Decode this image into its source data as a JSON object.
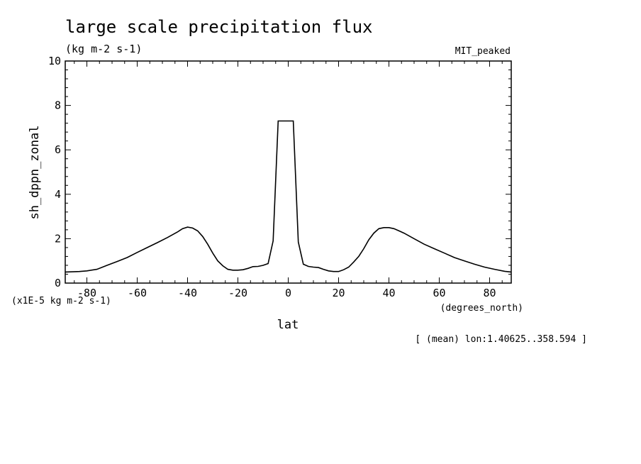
{
  "chart_data": {
    "type": "line",
    "title": "large scale precipitation flux",
    "units": "(kg m-2 s-1)",
    "dataset": "MIT_peaked",
    "ylabel": "sh_dppn_zonal",
    "xlabel": "lat",
    "x_units": "(degrees_north)",
    "scale_note": "(x1E-5 kg m-2 s-1)",
    "footnote": "[ (mean) lon:1.40625..358.594 ]",
    "xlim": [
      -88.6,
      88.6
    ],
    "ylim": [
      0,
      10
    ],
    "x_ticks": [
      -80,
      -60,
      -40,
      -20,
      0,
      20,
      40,
      60,
      80
    ],
    "x_tick_labels": [
      "-80",
      "-60",
      "-40",
      "-20",
      "0",
      "20",
      "40",
      "60",
      "80"
    ],
    "y_ticks": [
      0,
      2,
      4,
      6,
      8,
      10
    ],
    "y_tick_labels": [
      "0",
      "2",
      "4",
      "6",
      "8",
      "10"
    ],
    "series": [
      {
        "x": [
          -88.6,
          -83,
          -80,
          -76,
          -72,
          -68,
          -64,
          -60,
          -56,
          -52,
          -48,
          -44,
          -42,
          -40,
          -38,
          -36,
          -34,
          -32,
          -30,
          -28,
          -26,
          -24,
          -22,
          -20,
          -18,
          -16,
          -14,
          -12,
          -10,
          -8,
          -6,
          -4,
          -2,
          2,
          4,
          6,
          8,
          10,
          12,
          14,
          16,
          18,
          20,
          22,
          24,
          26,
          28,
          30,
          32,
          34,
          36,
          38,
          40,
          42,
          44,
          46,
          50,
          54,
          58,
          62,
          66,
          70,
          74,
          78,
          82,
          86,
          88.6
        ],
        "y": [
          0.5,
          0.52,
          0.55,
          0.62,
          0.8,
          0.97,
          1.15,
          1.38,
          1.6,
          1.82,
          2.05,
          2.3,
          2.45,
          2.52,
          2.48,
          2.35,
          2.1,
          1.75,
          1.35,
          1.0,
          0.78,
          0.62,
          0.58,
          0.58,
          0.6,
          0.66,
          0.74,
          0.75,
          0.8,
          0.88,
          1.9,
          7.3,
          7.3,
          7.3,
          1.85,
          0.85,
          0.75,
          0.72,
          0.7,
          0.62,
          0.55,
          0.52,
          0.52,
          0.6,
          0.72,
          0.95,
          1.2,
          1.55,
          1.95,
          2.25,
          2.45,
          2.5,
          2.5,
          2.45,
          2.35,
          2.25,
          2.0,
          1.75,
          1.55,
          1.35,
          1.15,
          1.0,
          0.85,
          0.72,
          0.62,
          0.53,
          0.5
        ]
      }
    ]
  }
}
